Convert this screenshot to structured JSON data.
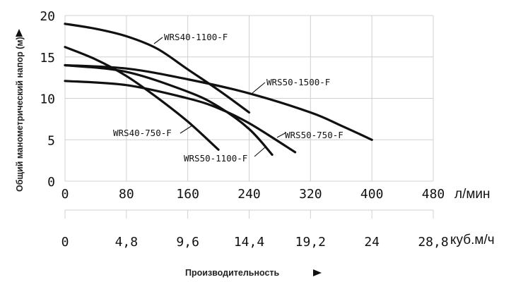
{
  "chart_data": {
    "type": "line",
    "title": "",
    "xlabel": "Производительность",
    "ylabel": "Общий манометрический напор (м)",
    "x_unit": "л/мин",
    "x2_unit": "куб.м/ч",
    "xlim": [
      0,
      480
    ],
    "ylim": [
      0,
      20
    ],
    "x_ticks": [
      "0",
      "80",
      "160",
      "240",
      "320",
      "400",
      "480"
    ],
    "x2_ticks": [
      "0",
      "4,8",
      "9,6",
      "14,4",
      "19,2",
      "24",
      "28,8"
    ],
    "y_ticks": [
      "0",
      "5",
      "10",
      "15",
      "20"
    ],
    "grid": true,
    "series": [
      {
        "name": "WRS40-1100-F",
        "x": [
          0,
          40,
          80,
          120,
          160,
          200,
          240
        ],
        "y": [
          19,
          18.4,
          17.5,
          16,
          13.5,
          11,
          8.3
        ]
      },
      {
        "name": "WRS50-1500-F",
        "x": [
          0,
          80,
          160,
          240,
          320,
          360,
          400
        ],
        "y": [
          14,
          13.6,
          12.3,
          10.6,
          8.3,
          6.7,
          5
        ]
      },
      {
        "name": "WRS40-750-F",
        "x": [
          0,
          40,
          80,
          120,
          160,
          200
        ],
        "y": [
          16.2,
          14.7,
          12.7,
          10.1,
          7.2,
          3.8
        ]
      },
      {
        "name": "WRS50-1100-F",
        "x": [
          0,
          80,
          160,
          200,
          240,
          270
        ],
        "y": [
          14,
          13.2,
          10.8,
          9,
          6.3,
          3.2
        ]
      },
      {
        "name": "WRS50-750-F",
        "x": [
          0,
          80,
          160,
          200,
          240,
          300
        ],
        "y": [
          12.1,
          11.6,
          10,
          8.8,
          7,
          3.5
        ]
      }
    ]
  }
}
